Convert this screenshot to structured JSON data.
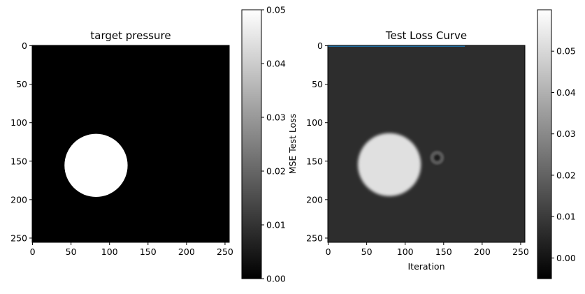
{
  "chart_data": [
    {
      "type": "heatmap",
      "title": "target pressure",
      "xlabel": "",
      "ylabel": "",
      "grid_size": [
        256,
        256
      ],
      "xlim": [
        0,
        256
      ],
      "ylim": [
        256,
        0
      ],
      "x_ticks": [
        "0",
        "50",
        "100",
        "150",
        "200",
        "250"
      ],
      "y_ticks": [
        "0",
        "50",
        "100",
        "150",
        "200",
        "250"
      ],
      "colormap": "gray",
      "background_value": 0.0,
      "shapes": [
        {
          "kind": "disk",
          "center": [
            83,
            156
          ],
          "radius": 41,
          "value": 0.05
        }
      ],
      "colorbar": {
        "vmin": 0.0,
        "vmax": 0.05,
        "ticks": [
          "0.00",
          "0.01",
          "0.02",
          "0.03",
          "0.04",
          "0.05"
        ],
        "tick_values": [
          0.0,
          0.01,
          0.02,
          0.03,
          0.04,
          0.05
        ]
      }
    },
    {
      "type": "heatmap",
      "title": "Test Loss Curve",
      "xlabel": "Iteration",
      "ylabel": "MSE Test Loss",
      "grid_size": [
        256,
        256
      ],
      "xlim": [
        0,
        256
      ],
      "ylim": [
        256,
        0
      ],
      "x_ticks": [
        "0",
        "50",
        "100",
        "150",
        "200",
        "250"
      ],
      "y_ticks": [
        "0",
        "50",
        "100",
        "150",
        "200",
        "250"
      ],
      "colormap": "gray",
      "background_value": 0.0065,
      "shapes": [
        {
          "kind": "disk",
          "center": [
            80,
            155
          ],
          "radius": 41,
          "value": 0.052
        },
        {
          "kind": "blob",
          "center": [
            142,
            146
          ],
          "radius": 9,
          "value": 0.018
        },
        {
          "kind": "blob",
          "center": [
            142,
            146
          ],
          "radius": 4,
          "value": 0.003
        }
      ],
      "overlay_line": {
        "color": "#1f77b4",
        "x": [
          0,
          178
        ],
        "y": [
          0.2,
          0.2
        ]
      },
      "colorbar": {
        "vmin": -0.005,
        "vmax": 0.06,
        "ticks": [
          "0.00",
          "0.01",
          "0.02",
          "0.03",
          "0.04",
          "0.05"
        ],
        "tick_values": [
          0.0,
          0.01,
          0.02,
          0.03,
          0.04,
          0.05
        ]
      }
    }
  ]
}
